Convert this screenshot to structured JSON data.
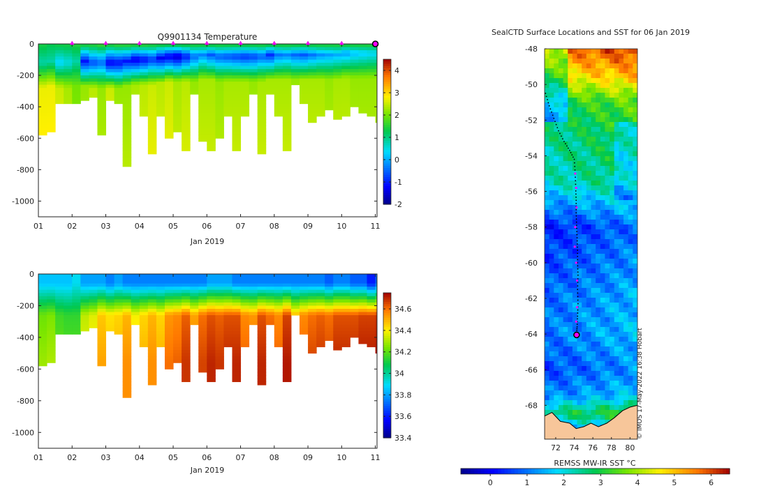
{
  "chart_data": [
    {
      "type": "heatmap",
      "title": "Q9901134  Temperature",
      "variable": "Temperature",
      "xlabel": "Jan 2019",
      "ylabel": "",
      "xlim": [
        1,
        11.05
      ],
      "ylim": [
        -1100,
        0
      ],
      "x_ticks": [
        "01",
        "02",
        "03",
        "04",
        "05",
        "06",
        "07",
        "08",
        "09",
        "10",
        "11"
      ],
      "y_ticks": [
        "0",
        "-200",
        "-400",
        "-600",
        "-800",
        "-1000"
      ],
      "colorbar": {
        "min": -2,
        "max": 4.5,
        "ticks": [
          "-2",
          "-1",
          "0",
          "1",
          "2",
          "3",
          "4"
        ]
      },
      "surface_markers_day": [
        2,
        3,
        4,
        5,
        6,
        7,
        8,
        9,
        10
      ],
      "current_marker_day": 11,
      "profile_day": [
        1.0,
        1.25,
        1.5,
        1.75,
        2.0,
        2.25,
        2.5,
        2.75,
        3.0,
        3.25,
        3.5,
        3.75,
        4.0,
        4.25,
        4.5,
        4.75,
        5.0,
        5.25,
        5.5,
        5.75,
        6.0,
        6.25,
        6.5,
        6.75,
        7.0,
        7.25,
        7.5,
        7.75,
        8.0,
        8.25,
        8.5,
        8.75,
        9.0,
        9.25,
        9.5,
        9.75,
        10.0,
        10.25,
        10.5,
        10.75,
        11.0
      ],
      "profile_max_depth_m": [
        580,
        560,
        370,
        370,
        365,
        360,
        340,
        570,
        350,
        370,
        770,
        310,
        450,
        690,
        460,
        590,
        550,
        670,
        320,
        610,
        670,
        590,
        450,
        680,
        450,
        320,
        690,
        320,
        460,
        670,
        260,
        370,
        500,
        450,
        420,
        480,
        460,
        400,
        430,
        460,
        490
      ],
      "profile_surface_temp_c": [
        1.4,
        1.3,
        1.4,
        1.4,
        1.5,
        1.6,
        1.6,
        1.7,
        1.6,
        1.7,
        1.7,
        1.7,
        1.7,
        1.6,
        1.6,
        1.6,
        1.6,
        1.6,
        1.6,
        1.6,
        1.6,
        1.6,
        1.6,
        1.6,
        1.6,
        1.6,
        1.6,
        1.6,
        1.6,
        1.6,
        1.6,
        1.6,
        1.6,
        1.6,
        1.6,
        1.6,
        1.6,
        1.6,
        1.6,
        1.6,
        1.6
      ],
      "profile_min_temp_c": [
        0.8,
        0.8,
        0.3,
        0.5,
        0.8,
        -1.1,
        -0.7,
        -0.5,
        -1.3,
        -1.2,
        -1.1,
        -1.4,
        -1.2,
        -0.9,
        -1.3,
        -1.4,
        -1.6,
        -1.1,
        -0.5,
        -0.3,
        -0.6,
        -0.6,
        -0.7,
        -0.8,
        -0.9,
        -0.8,
        -0.6,
        -0.9,
        -0.4,
        -0.3,
        -0.5,
        -0.6,
        -0.4,
        -0.2,
        -0.1,
        0.0,
        -0.1,
        0.1,
        0.2,
        0.3,
        0.4
      ],
      "profile_min_depth_m": [
        120,
        110,
        120,
        120,
        110,
        110,
        120,
        120,
        120,
        120,
        110,
        100,
        100,
        100,
        90,
        80,
        80,
        80,
        80,
        70,
        70,
        80,
        80,
        80,
        80,
        80,
        80,
        70,
        70,
        70,
        70,
        70,
        70,
        70,
        70,
        70,
        60,
        60,
        60,
        60,
        60
      ],
      "profile_deep_temp_c": [
        2.7,
        2.7,
        2.5,
        2.3,
        2.0,
        2.2,
        2.4,
        2.2,
        2.5,
        2.2,
        2.2,
        2.3,
        2.4,
        2.5,
        2.4,
        2.5,
        2.3,
        2.4,
        2.2,
        2.3,
        2.3,
        2.2,
        2.3,
        2.3,
        2.3,
        2.2,
        2.3,
        2.3,
        2.3,
        2.3,
        2.2,
        2.3,
        2.3,
        2.3,
        2.2,
        2.3,
        2.3,
        2.2,
        2.2,
        2.2,
        2.2
      ]
    },
    {
      "type": "heatmap",
      "title": "",
      "variable": "Salinity",
      "xlabel": "Jan 2019",
      "ylabel": "",
      "xlim": [
        1,
        11.05
      ],
      "ylim": [
        -1100,
        0
      ],
      "x_ticks": [
        "01",
        "02",
        "03",
        "04",
        "05",
        "06",
        "07",
        "08",
        "09",
        "10",
        "11"
      ],
      "y_ticks": [
        "0",
        "-200",
        "-400",
        "-600",
        "-800",
        "-1000"
      ],
      "colorbar": {
        "min": 33.4,
        "max": 34.75,
        "ticks": [
          "33.4",
          "33.6",
          "33.8",
          "34",
          "34.2",
          "34.4",
          "34.6"
        ]
      },
      "profile_day": [
        1.0,
        1.25,
        1.5,
        1.75,
        2.0,
        2.25,
        2.5,
        2.75,
        3.0,
        3.25,
        3.5,
        3.75,
        4.0,
        4.25,
        4.5,
        4.75,
        5.0,
        5.25,
        5.5,
        5.75,
        6.0,
        6.25,
        6.5,
        6.75,
        7.0,
        7.25,
        7.5,
        7.75,
        8.0,
        8.25,
        8.5,
        8.75,
        9.0,
        9.25,
        9.5,
        9.75,
        10.0,
        10.25,
        10.5,
        10.75,
        11.0
      ],
      "profile_max_depth_m": [
        580,
        560,
        370,
        370,
        365,
        360,
        340,
        570,
        350,
        370,
        770,
        310,
        450,
        690,
        460,
        590,
        550,
        670,
        320,
        610,
        670,
        590,
        450,
        680,
        450,
        320,
        690,
        320,
        460,
        670,
        260,
        370,
        500,
        450,
        420,
        480,
        460,
        400,
        430,
        460,
        490
      ],
      "profile_surface_sal": [
        33.85,
        33.85,
        33.85,
        33.85,
        33.9,
        33.8,
        33.8,
        33.8,
        33.75,
        33.8,
        33.75,
        33.75,
        33.75,
        33.75,
        33.75,
        33.75,
        33.75,
        33.75,
        33.75,
        33.75,
        33.8,
        33.8,
        33.8,
        33.75,
        33.75,
        33.75,
        33.75,
        33.75,
        33.75,
        33.75,
        33.75,
        33.75,
        33.75,
        33.75,
        33.7,
        33.75,
        33.75,
        33.7,
        33.7,
        33.6,
        33.7
      ],
      "profile_deep_sal": [
        34.28,
        34.3,
        34.22,
        34.2,
        34.2,
        34.38,
        34.42,
        34.52,
        34.48,
        34.5,
        34.55,
        34.45,
        34.5,
        34.55,
        34.5,
        34.6,
        34.62,
        34.68,
        34.58,
        34.66,
        34.7,
        34.68,
        34.7,
        34.7,
        34.62,
        34.6,
        34.7,
        34.66,
        34.62,
        34.72,
        34.55,
        34.62,
        34.66,
        34.68,
        34.66,
        34.7,
        34.7,
        34.7,
        34.72,
        34.72,
        34.74
      ]
    },
    {
      "type": "heatmap",
      "title": "SealCTD Surface Locations and SST for 06 Jan 2019",
      "variable": "SST",
      "xlabel": "",
      "ylabel": "",
      "colorbar_label": "REMSS MW-IR SST °C",
      "colorbar": {
        "min": -0.8,
        "max": 6.5,
        "ticks": [
          "0",
          "1",
          "2",
          "3",
          "4",
          "5",
          "6"
        ]
      },
      "x_ticks": [
        "72",
        "74",
        "76",
        "78",
        "80"
      ],
      "y_ticks": [
        "-48",
        "-50",
        "-52",
        "-54",
        "-56",
        "-58",
        "-60",
        "-62",
        "-64",
        "-66",
        "-68"
      ],
      "xlim": [
        70.8,
        80.8
      ],
      "ylim": [
        -69.9,
        -48.0
      ],
      "track_lon": [
        70.9,
        71.3,
        71.8,
        72.3,
        72.9,
        73.5,
        74.0,
        74.1,
        74.15,
        74.2,
        74.2,
        74.25,
        74.3,
        74.35,
        74.35,
        74.4,
        74.35,
        74.4,
        74.35,
        74.3,
        74.25
      ],
      "track_lat": [
        -50.5,
        -51.2,
        -51.9,
        -52.6,
        -53.2,
        -53.7,
        -54.2,
        -55.0,
        -55.8,
        -56.5,
        -57.2,
        -57.9,
        -58.6,
        -59.3,
        -60.0,
        -60.7,
        -61.5,
        -62.3,
        -63.0,
        -63.6,
        -64.0
      ],
      "profile_marker_lon": [
        74.1,
        74.2,
        74.25,
        74.1,
        74.05,
        74.2,
        74.3,
        74.3,
        74.2
      ],
      "profile_marker_lat": [
        -55.0,
        -55.8,
        -56.9,
        -58.0,
        -59.1,
        -60.0,
        -61.0,
        -62.5,
        -63.3
      ],
      "current_position": {
        "lon": 74.25,
        "lat": -64.05
      },
      "credit": "© IMOS 17-May-2022 16:38 Hobart"
    }
  ]
}
